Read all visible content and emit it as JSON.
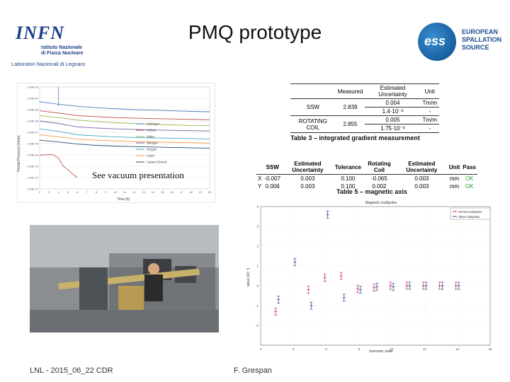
{
  "header": {
    "logo_left": {
      "letters": "INFN",
      "line1": "Istituto Nazionale",
      "line2": "di Fisica Nucleare",
      "lab": "Laboratori Nazionali di Legnaro"
    },
    "title": "PMQ prototype",
    "logo_right": {
      "mark": "ess",
      "line1": "EUROPEAN",
      "line2": "SPALLATION",
      "line3": "SOURCE"
    }
  },
  "vacuum_chart": {
    "ylabel": "Partial Pressure [mbar]",
    "xlabel": "Time [h]",
    "yticks": [
      "1.00E-03",
      "1.00E-04",
      "1.00E-05",
      "1.00E-06",
      "1.00E-07",
      "1.00E-08",
      "1.00E-09",
      "1.00E-10",
      "1.00E-11",
      "1.00E-12"
    ],
    "xticks": [
      "2",
      "3",
      "4",
      "5",
      "6",
      "7",
      "8",
      "9",
      "10",
      "11",
      "12",
      "13",
      "14",
      "15",
      "16",
      "17",
      "18",
      "19",
      "20"
    ],
    "legend": [
      "Hydrogen",
      "Helium",
      "Water",
      "Nitrogen",
      "Oxygen",
      "Argon",
      "Carbon Dioxide"
    ],
    "overlay": "See vacuum presentation"
  },
  "table3": {
    "headers": [
      "",
      "Measured",
      "Estimated Uncertainty",
      "Unit"
    ],
    "rows": [
      {
        "label": "SSW",
        "measured": "2.839",
        "u1": "0.004",
        "unit1": "Tm/m",
        "u2": "1.4·10⁻³",
        "unit2": "-"
      },
      {
        "label": "ROTATING COIL",
        "measured": "2.855",
        "u1": "0.005",
        "unit1": "Tm/m",
        "u2": "1.75·10⁻³",
        "unit2": "-"
      }
    ],
    "caption": "Table 3 – integrated gradient measurement"
  },
  "table5": {
    "headers": [
      "",
      "SSW",
      "Estimated Uncertainty",
      "Tolerance",
      "Rotating Coil",
      "Estimated Uncertainty",
      "Unit",
      "Pass"
    ],
    "rows": [
      [
        "X",
        "-0.007",
        "0.003",
        "0.100",
        "-0.065",
        "0.003",
        "mm",
        "OK"
      ],
      [
        "Y",
        "0.006",
        "0.003",
        "0.100",
        "0.002",
        "0.003",
        "mm",
        "OK"
      ]
    ],
    "caption": "Table 5 – magnetic axis"
  },
  "multipoles_chart": {
    "title": "Magnetic multipoles",
    "xlabel": "harmonic order",
    "ylabel": "value [10⁻⁴]",
    "legend": [
      "Normal multipoles",
      "Skew multipoles"
    ],
    "xticks": [
      "2",
      "4",
      "6",
      "8",
      "10",
      "12",
      "14",
      "16"
    ],
    "yticks": [
      "4",
      "3",
      "2",
      "1",
      "0",
      "-1",
      "-2"
    ]
  },
  "chart_data": [
    {
      "type": "line",
      "title": "",
      "xlabel": "Time [h]",
      "ylabel": "Partial Pressure [mbar]",
      "log_y": true,
      "ylim": [
        1e-12,
        0.001
      ],
      "xlim": [
        2,
        20
      ],
      "series": [
        {
          "name": "Hydrogen",
          "color": "#4a7ebb",
          "x": [
            2,
            4,
            6,
            8,
            10,
            12,
            14,
            16,
            18,
            20
          ],
          "y": [
            5e-05,
            3e-05,
            2e-05,
            1.5e-05,
            1.2e-05,
            1e-05,
            9e-06,
            8e-06,
            7e-06,
            6.5e-06
          ]
        },
        {
          "name": "Helium",
          "color": "#be4b48",
          "x": [
            2,
            4,
            6,
            8,
            10,
            12,
            14,
            16,
            18,
            20
          ],
          "y": [
            8e-06,
            5e-06,
            3e-06,
            2.4e-06,
            2e-06,
            1.8e-06,
            1.6e-06,
            1.5e-06,
            1.4e-06,
            1.3e-06
          ]
        },
        {
          "name": "Water",
          "color": "#98b954",
          "x": [
            2,
            4,
            6,
            8,
            10,
            12,
            14,
            16,
            18,
            20
          ],
          "y": [
            3e-06,
            2e-06,
            1.2e-06,
            9e-07,
            7e-07,
            6e-07,
            5e-07,
            4.5e-07,
            4e-07,
            3.8e-07
          ]
        },
        {
          "name": "Nitrogen",
          "color": "#7d60a0",
          "x": [
            2,
            4,
            6,
            8,
            10,
            12,
            14,
            16,
            18,
            20
          ],
          "y": [
            1e-06,
            6e-07,
            3e-07,
            2.4e-07,
            2e-07,
            1.8e-07,
            1.6e-07,
            1.5e-07,
            1.4e-07,
            1.3e-07
          ]
        },
        {
          "name": "Oxygen",
          "color": "#46aac5",
          "x": [
            2,
            4,
            6,
            8,
            10,
            12,
            14,
            16,
            18,
            20
          ],
          "y": [
            2e-07,
            1.2e-07,
            6e-08,
            4.8e-08,
            4e-08,
            3.5e-08,
            3.2e-08,
            3e-08,
            2.8e-08,
            2.6e-08
          ]
        },
        {
          "name": "Argon",
          "color": "#f79646",
          "x": [
            2,
            4,
            6,
            8,
            10,
            12,
            14,
            16,
            18,
            20
          ],
          "y": [
            6e-08,
            4e-08,
            2.5e-08,
            2e-08,
            1.7e-08,
            1.5e-08,
            1.4e-08,
            1.3e-08,
            1.2e-08,
            1.1e-08
          ]
        },
        {
          "name": "Carbon Dioxide",
          "color": "#2c4d75",
          "x": [
            2,
            4,
            6,
            8,
            10,
            12,
            14,
            16,
            18,
            20
          ],
          "y": [
            2e-08,
            1.4e-08,
            9e-09,
            7e-09,
            6e-09,
            5.5e-09,
            5e-09,
            4.6e-09,
            4.3e-09,
            4e-09
          ]
        },
        {
          "name": "",
          "color": "#c0504d",
          "x": [
            2,
            2.5,
            3,
            3.5,
            4,
            4.5,
            5,
            5.5,
            6
          ],
          "y": [
            1e-09,
            1e-09,
            1.1e-09,
            1e-09,
            5e-10,
            1e-10,
            5e-11,
            2e-11,
            1e-11
          ]
        }
      ]
    },
    {
      "type": "scatter",
      "title": "Magnetic multipoles",
      "xlabel": "harmonic order",
      "ylabel": "value [10⁻⁴]",
      "xlim": [
        2,
        16
      ],
      "ylim": [
        -3,
        4
      ],
      "series": [
        {
          "name": "Normal multipoles",
          "color": "#cc3344",
          "x": [
            3,
            5,
            6,
            7,
            8,
            9,
            10,
            11,
            12,
            13,
            14
          ],
          "y": [
            -1.3,
            -0.2,
            0.4,
            0.5,
            -0.15,
            -0.1,
            0.0,
            0.0,
            0.0,
            0.0,
            0.0
          ]
        },
        {
          "name": "Skew multipoles",
          "color": "#3344aa",
          "x": [
            3,
            4,
            5,
            6,
            7,
            8,
            9,
            10,
            11,
            12,
            13,
            14
          ],
          "y": [
            -0.7,
            1.2,
            -1.0,
            3.6,
            -0.6,
            -0.2,
            -0.05,
            -0.05,
            0.0,
            0.0,
            0.0,
            0.0
          ]
        }
      ]
    }
  ],
  "footer": {
    "left": "LNL - 2015_06_22 CDR",
    "center": "F. Grespan"
  }
}
